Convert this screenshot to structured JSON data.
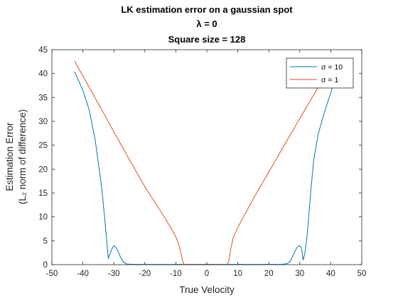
{
  "chart_data": {
    "type": "line",
    "title": [
      "LK estimation error on a gaussian spot",
      "λ = 0",
      "Square size = 128"
    ],
    "xlabel": "True Velocity",
    "ylabel": [
      "Estimation Error",
      "(L₂ norm of difference)"
    ],
    "xlim": [
      -50,
      50
    ],
    "ylim": [
      0,
      45
    ],
    "xticks": [
      -50,
      -40,
      -30,
      -20,
      -10,
      0,
      10,
      20,
      30,
      40,
      50
    ],
    "yticks": [
      0,
      5,
      10,
      15,
      20,
      25,
      30,
      35,
      40,
      45
    ],
    "grid": false,
    "legend_position": "top-right",
    "series": [
      {
        "name": "σ = 10",
        "color": "#0072BD",
        "points": [
          [
            -42.7,
            40.4
          ],
          [
            -40,
            36.5
          ],
          [
            -38,
            32.5
          ],
          [
            -36,
            26
          ],
          [
            -34,
            16.5
          ],
          [
            -33,
            10
          ],
          [
            -32.3,
            5
          ],
          [
            -31.8,
            1.3
          ],
          [
            -30.7,
            3.2
          ],
          [
            -30,
            4.0
          ],
          [
            -29,
            3.3
          ],
          [
            -28,
            1.8
          ],
          [
            -27,
            0.6
          ],
          [
            -26,
            0.15
          ],
          [
            -24,
            0.05
          ],
          [
            -20,
            0.05
          ],
          [
            -10,
            0.05
          ],
          [
            0,
            0.05
          ],
          [
            10,
            0.05
          ],
          [
            20,
            0.05
          ],
          [
            24,
            0.05
          ],
          [
            26,
            0.2
          ],
          [
            27,
            0.8
          ],
          [
            28,
            2.2
          ],
          [
            29,
            3.5
          ],
          [
            29.8,
            4.0
          ],
          [
            30.5,
            3.6
          ],
          [
            31.1,
            1.0
          ],
          [
            31.7,
            2.5
          ],
          [
            32.5,
            7
          ],
          [
            33.5,
            15
          ],
          [
            34.5,
            22
          ],
          [
            36,
            27.5
          ],
          [
            38,
            32
          ],
          [
            40,
            36
          ],
          [
            41.3,
            38.6
          ]
        ]
      },
      {
        "name": "σ = 1",
        "color": "#D95319",
        "points": [
          [
            -42.7,
            42.6
          ],
          [
            -40,
            39.5
          ],
          [
            -35,
            33.7
          ],
          [
            -30,
            27.8
          ],
          [
            -25,
            22.0
          ],
          [
            -20,
            16.3
          ],
          [
            -15,
            11.3
          ],
          [
            -13,
            9.2
          ],
          [
            -11,
            7.0
          ],
          [
            -10,
            5.8
          ],
          [
            -9,
            4.2
          ],
          [
            -8.2,
            2.0
          ],
          [
            -7.7,
            0.5
          ],
          [
            -7.3,
            0.05
          ],
          [
            -5,
            0.02
          ],
          [
            0,
            0.02
          ],
          [
            5,
            0.02
          ],
          [
            6.6,
            0.05
          ],
          [
            7.1,
            0.8
          ],
          [
            7.7,
            3.2
          ],
          [
            8.5,
            5.6
          ],
          [
            10,
            7.8
          ],
          [
            12,
            10.2
          ],
          [
            15,
            13.8
          ],
          [
            20,
            19.4
          ],
          [
            25,
            25.0
          ],
          [
            30,
            30.6
          ],
          [
            35,
            36.1
          ],
          [
            38.5,
            40.0
          ]
        ]
      }
    ]
  }
}
